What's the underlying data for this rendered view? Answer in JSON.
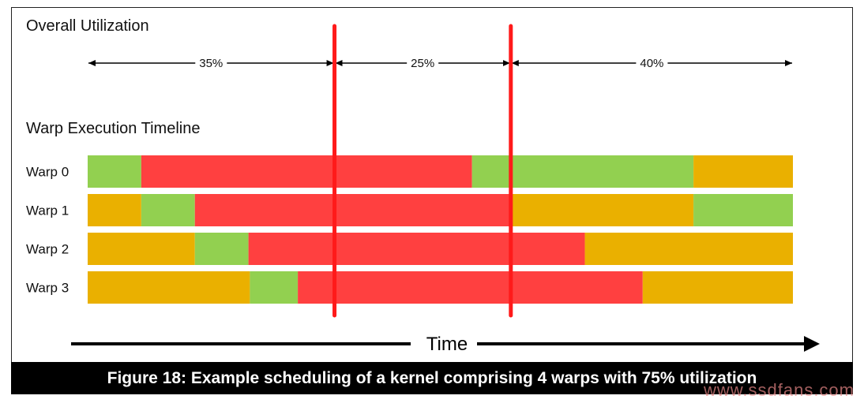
{
  "overall_title": "Overall Utilization",
  "timeline_title": "Warp Execution Timeline",
  "phases": [
    {
      "label": "35%",
      "start": 0,
      "end": 35
    },
    {
      "label": "25%",
      "start": 35,
      "end": 60
    },
    {
      "label": "40%",
      "start": 60,
      "end": 100
    }
  ],
  "time_label": "Time",
  "caption": "Figure 18: Example scheduling of a kernel comprising 4 warps with 75% utilization",
  "watermark": "www.ssdfans.com",
  "colors": {
    "green": "#92d050",
    "red": "#ff4040",
    "orange": "#eab000",
    "marker": "#ff1a1a"
  },
  "warps": [
    {
      "label": "Warp 0",
      "segments": [
        {
          "state": "green",
          "start": 0,
          "end": 7.6
        },
        {
          "state": "red",
          "start": 7.6,
          "end": 54.5
        },
        {
          "state": "green",
          "start": 54.5,
          "end": 85.9
        },
        {
          "state": "orange",
          "start": 85.9,
          "end": 100
        }
      ]
    },
    {
      "label": "Warp 1",
      "segments": [
        {
          "state": "orange",
          "start": 0,
          "end": 7.6
        },
        {
          "state": "green",
          "start": 7.6,
          "end": 15.2
        },
        {
          "state": "red",
          "start": 15.2,
          "end": 60.0
        },
        {
          "state": "orange",
          "start": 60.0,
          "end": 85.9
        },
        {
          "state": "green",
          "start": 85.9,
          "end": 100
        }
      ]
    },
    {
      "label": "Warp 2",
      "segments": [
        {
          "state": "orange",
          "start": 0,
          "end": 15.2
        },
        {
          "state": "green",
          "start": 15.2,
          "end": 22.8
        },
        {
          "state": "red",
          "start": 22.8,
          "end": 70.5
        },
        {
          "state": "orange",
          "start": 70.5,
          "end": 100
        }
      ]
    },
    {
      "label": "Warp 3",
      "segments": [
        {
          "state": "orange",
          "start": 0,
          "end": 23.0
        },
        {
          "state": "green",
          "start": 23.0,
          "end": 29.8
        },
        {
          "state": "red",
          "start": 29.8,
          "end": 78.7
        },
        {
          "state": "orange",
          "start": 78.7,
          "end": 100
        }
      ]
    }
  ]
}
